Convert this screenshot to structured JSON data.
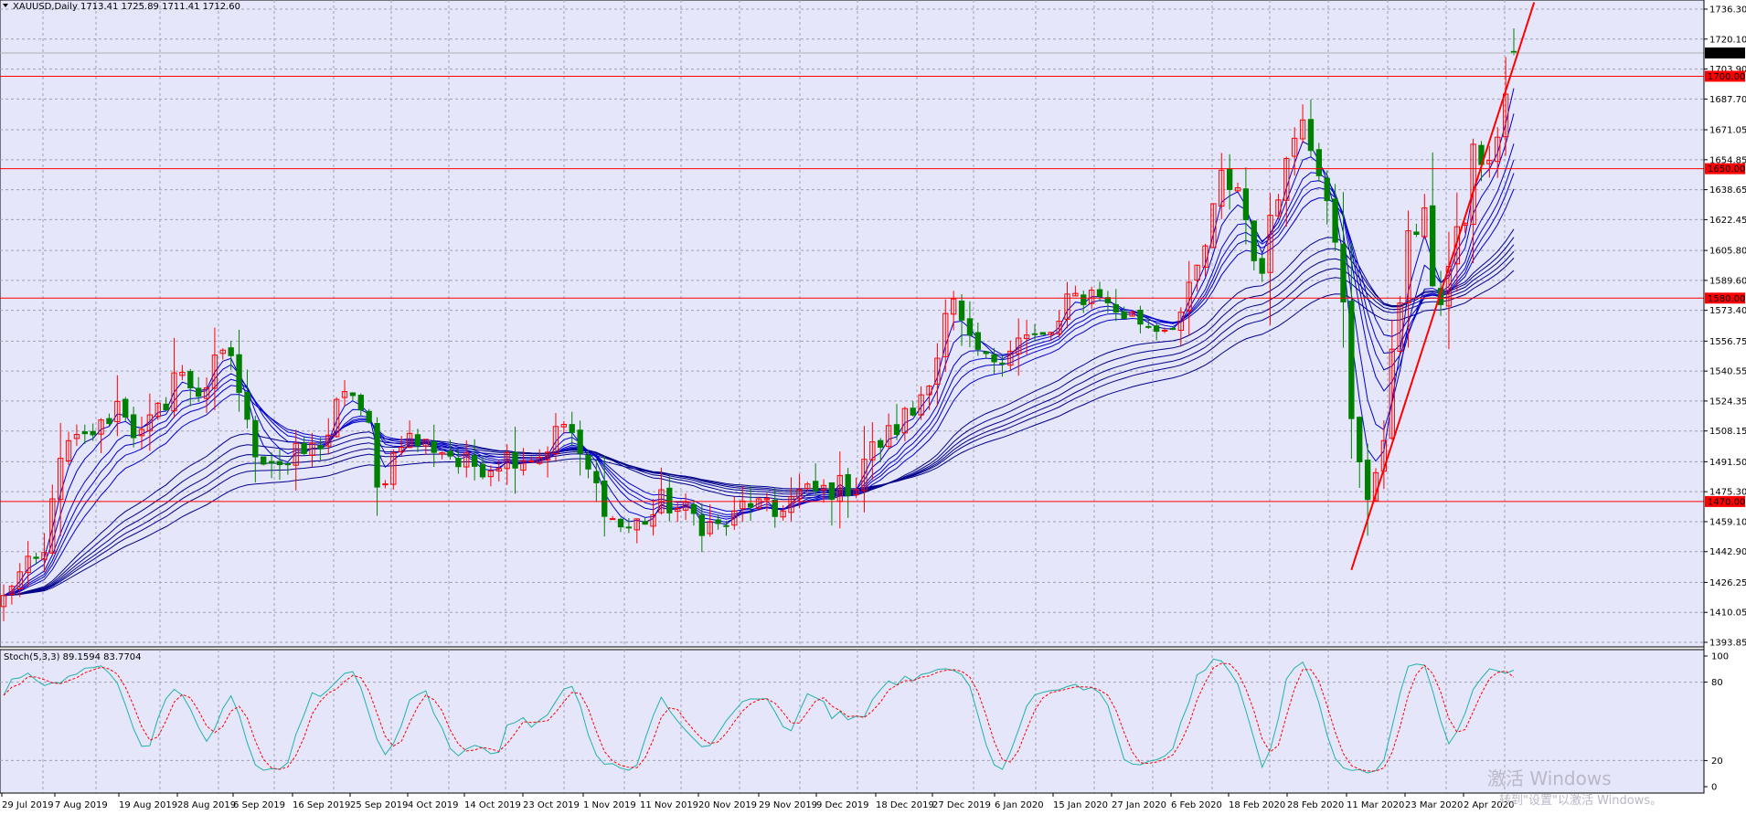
{
  "window": {
    "symbol_caption": "XAUUSD,Daily  1713.41 1725.89 1711.41 1712.60",
    "stoch_caption": "Stoch(5,3,3) 89.1594 83.7704",
    "watermark_title": "激活 Windows",
    "watermark_sub": "转到\"设置\"以激活 Windows。"
  },
  "colors": {
    "background": "#ffffff",
    "plot_background": "#e6e6fa",
    "grid": "#a0a0b4",
    "candle_bull": "#ff0000",
    "candle_bear": "#008000",
    "ema_bundle": "#0000cd",
    "ema_slow": "#00008b",
    "stoch_main": "#20b2aa",
    "stoch_signal": "#ff0000",
    "hline": "#ff0000",
    "price_box": "#000000"
  },
  "chart_data": [
    {
      "type": "candlestick",
      "title": "XAUUSD,Daily",
      "ohlc_last": {
        "open": 1713.41,
        "high": 1725.89,
        "low": 1711.41,
        "close": 1712.6
      },
      "x_tick_labels": [
        "29 Jul 2019",
        "7 Aug 2019",
        "19 Aug 2019",
        "28 Aug 2019",
        "6 Sep 2019",
        "16 Sep 2019",
        "25 Sep 2019",
        "4 Oct 2019",
        "14 Oct 2019",
        "23 Oct 2019",
        "1 Nov 2019",
        "11 Nov 2019",
        "20 Nov 2019",
        "29 Nov 2019",
        "9 Dec 2019",
        "18 Dec 2019",
        "27 Dec 2019",
        "6 Jan 2020",
        "15 Jan 2020",
        "27 Jan 2020",
        "6 Feb 2020",
        "18 Feb 2020",
        "28 Feb 2020",
        "11 Mar 2020",
        "23 Mar 2020",
        "2 Apr 2020"
      ],
      "y_tick_labels": [
        "1736.30",
        "1720.10",
        "1703.90",
        "1687.70",
        "1671.05",
        "1654.85",
        "1638.65",
        "1622.45",
        "1605.80",
        "1589.60",
        "1573.40",
        "1556.75",
        "1540.55",
        "1524.35",
        "1508.15",
        "1491.50",
        "1475.30",
        "1459.10",
        "1442.90",
        "1426.25",
        "1410.05",
        "1393.85"
      ],
      "ylim": [
        1393.85,
        1736.3
      ],
      "current_price": "1712.60",
      "horizontal_levels": [
        "1700.00",
        "1650.00",
        "1580.00",
        "1470.00"
      ],
      "trendline": {
        "from": {
          "date": "16 Mar 2020",
          "price": 1433
        },
        "to": {
          "date": "9 Apr 2020",
          "price": 1736
        }
      },
      "grid": true,
      "indicators": "Guppy EMA ribbon (short bundle blue, long bundle dark blue)",
      "anchors": [
        [
          "2019-07-26",
          1417
        ],
        [
          "2019-08-02",
          1440
        ],
        [
          "2019-08-07",
          1500
        ],
        [
          "2019-08-13",
          1510
        ],
        [
          "2019-08-15",
          1523
        ],
        [
          "2019-08-20",
          1505
        ],
        [
          "2019-08-23",
          1525
        ],
        [
          "2019-08-26",
          1540
        ],
        [
          "2019-08-29",
          1530
        ],
        [
          "2019-09-04",
          1550
        ],
        [
          "2019-09-06",
          1510
        ],
        [
          "2019-09-10",
          1495
        ],
        [
          "2019-09-13",
          1490
        ],
        [
          "2019-09-18",
          1498
        ],
        [
          "2019-09-23",
          1520
        ],
        [
          "2019-09-25",
          1530
        ],
        [
          "2019-09-30",
          1475
        ],
        [
          "2019-10-03",
          1505
        ],
        [
          "2019-10-09",
          1500
        ],
        [
          "2019-10-14",
          1490
        ],
        [
          "2019-10-18",
          1490
        ],
        [
          "2019-10-23",
          1495
        ],
        [
          "2019-10-28",
          1495
        ],
        [
          "2019-10-31",
          1512
        ],
        [
          "2019-11-05",
          1486
        ],
        [
          "2019-11-08",
          1460
        ],
        [
          "2019-11-12",
          1456
        ],
        [
          "2019-11-18",
          1470
        ],
        [
          "2019-11-22",
          1462
        ],
        [
          "2019-11-27",
          1456
        ],
        [
          "2019-12-03",
          1470
        ],
        [
          "2019-12-06",
          1462
        ],
        [
          "2019-12-11",
          1474
        ],
        [
          "2019-12-16",
          1476
        ],
        [
          "2019-12-20",
          1480
        ],
        [
          "2019-12-24",
          1498
        ],
        [
          "2019-12-27",
          1510
        ],
        [
          "2019-12-31",
          1518
        ],
        [
          "2020-01-03",
          1550
        ],
        [
          "2020-01-07",
          1575
        ],
        [
          "2020-01-09",
          1553
        ],
        [
          "2020-01-13",
          1545
        ],
        [
          "2020-01-17",
          1558
        ],
        [
          "2020-01-22",
          1558
        ],
        [
          "2020-01-28",
          1580
        ],
        [
          "2020-01-31",
          1585
        ],
        [
          "2020-02-03",
          1575
        ],
        [
          "2020-02-07",
          1568
        ],
        [
          "2020-02-12",
          1565
        ],
        [
          "2020-02-17",
          1582
        ],
        [
          "2020-02-19",
          1608
        ],
        [
          "2020-02-21",
          1645
        ],
        [
          "2020-02-25",
          1640
        ],
        [
          "2020-02-28",
          1588
        ],
        [
          "2020-03-03",
          1640
        ],
        [
          "2020-03-06",
          1682
        ],
        [
          "2020-03-09",
          1665
        ],
        [
          "2020-03-11",
          1638
        ],
        [
          "2020-03-13",
          1575
        ],
        [
          "2020-03-16",
          1512
        ],
        [
          "2020-03-18",
          1475
        ],
        [
          "2020-03-20",
          1497
        ],
        [
          "2020-03-23",
          1555
        ],
        [
          "2020-03-25",
          1611
        ],
        [
          "2020-03-27",
          1622
        ],
        [
          "2020-03-31",
          1580
        ],
        [
          "2020-04-02",
          1612
        ],
        [
          "2020-04-06",
          1660
        ],
        [
          "2020-04-08",
          1650
        ],
        [
          "2020-04-10",
          1690
        ],
        [
          "2020-04-13",
          1712.6
        ]
      ]
    },
    {
      "type": "line",
      "title": "Stoch(5,3,3) 89.1594 83.7704",
      "y_tick_labels": [
        "100",
        "80",
        "20",
        "0"
      ],
      "ylim": [
        0,
        100
      ],
      "levels": [
        80,
        20
      ],
      "series": [
        {
          "name": "main",
          "last": 89.1594
        },
        {
          "name": "signal",
          "last": 83.7704
        }
      ]
    }
  ]
}
